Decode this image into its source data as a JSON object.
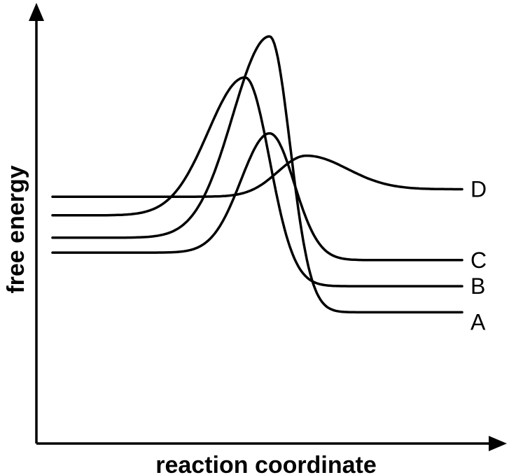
{
  "chart_data": {
    "type": "line",
    "xlabel": "reaction coordinate",
    "ylabel": "free energy",
    "grid": false,
    "legend": "series labels at right end of each curve",
    "colors": {
      "curve": "#000000",
      "background": "#ffffff"
    },
    "series": [
      {
        "name": "A",
        "shape": {
          "start": 0.46,
          "peak": 1.0,
          "end": 0.26,
          "peak_at": 0.53,
          "rise_w": 0.09,
          "fall_w": 0.05
        }
      },
      {
        "name": "B",
        "shape": {
          "start": 0.52,
          "peak": 0.89,
          "end": 0.33,
          "peak_at": 0.47,
          "rise_w": 0.09,
          "fall_w": 0.06
        }
      },
      {
        "name": "C",
        "shape": {
          "start": 0.42,
          "peak": 0.74,
          "end": 0.4,
          "peak_at": 0.53,
          "rise_w": 0.07,
          "fall_w": 0.06
        }
      },
      {
        "name": "D",
        "shape": {
          "start": 0.57,
          "peak": 0.68,
          "end": 0.59,
          "peak_at": 0.62,
          "rise_w": 0.07,
          "fall_w": 0.1
        }
      }
    ]
  }
}
